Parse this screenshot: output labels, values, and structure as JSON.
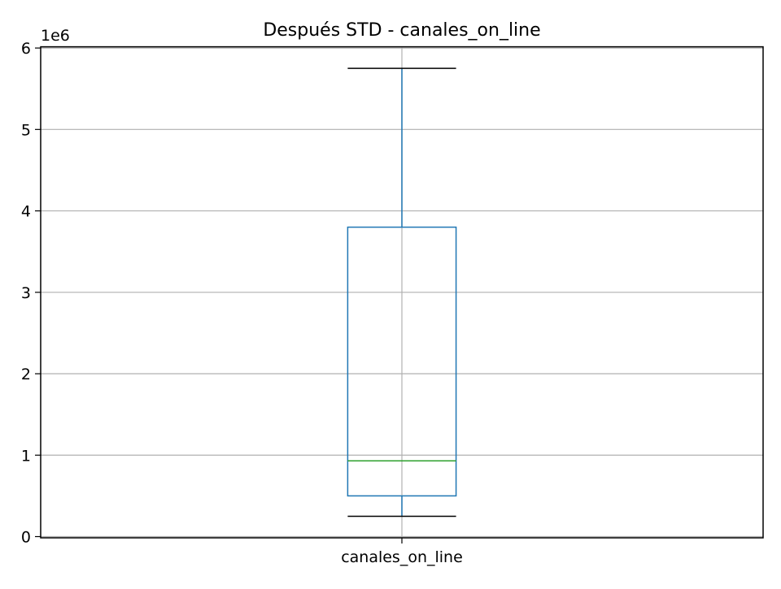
{
  "chart_data": {
    "type": "box",
    "title": "Después STD - canales_on_line",
    "offset_label": "1e6",
    "ylim": [
      -15000,
      6015000
    ],
    "y_ticks": [
      0,
      1,
      2,
      3,
      4,
      5,
      6
    ],
    "y_tick_multiplier": 1000000,
    "categories": [
      "canales_on_line"
    ],
    "boxes": [
      {
        "label": "canales_on_line",
        "whisker_low": 250000,
        "q1": 500000,
        "median": 930000,
        "q3": 3800000,
        "whisker_high": 5750000
      }
    ],
    "grid": true,
    "colors": {
      "box": "#1f77b4",
      "median": "#2ca02c",
      "cap": "#000000",
      "grid": "#b0b0b0",
      "axes": "#000000"
    }
  }
}
